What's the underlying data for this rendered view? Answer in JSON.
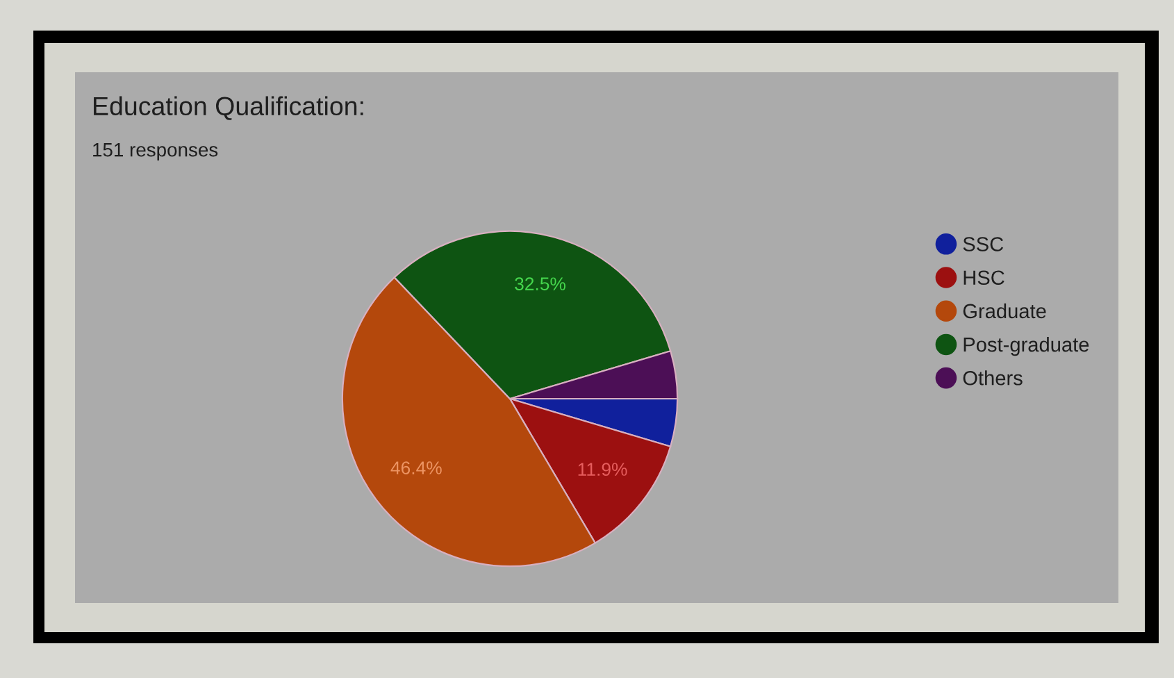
{
  "chart_data": {
    "type": "pie",
    "title": "Education Qualification:",
    "subtitle": "151 responses",
    "categories": [
      "SSC",
      "HSC",
      "Graduate",
      "Post-graduate",
      "Others"
    ],
    "values": [
      4.6,
      11.9,
      46.4,
      32.5,
      4.6
    ],
    "colors": [
      "#10209c",
      "#9c1010",
      "#b4480c",
      "#0e5412",
      "#4c0f56"
    ],
    "value_labels": [
      null,
      "11.9%",
      "46.4%",
      "32.5%",
      null
    ],
    "legend": "right"
  }
}
